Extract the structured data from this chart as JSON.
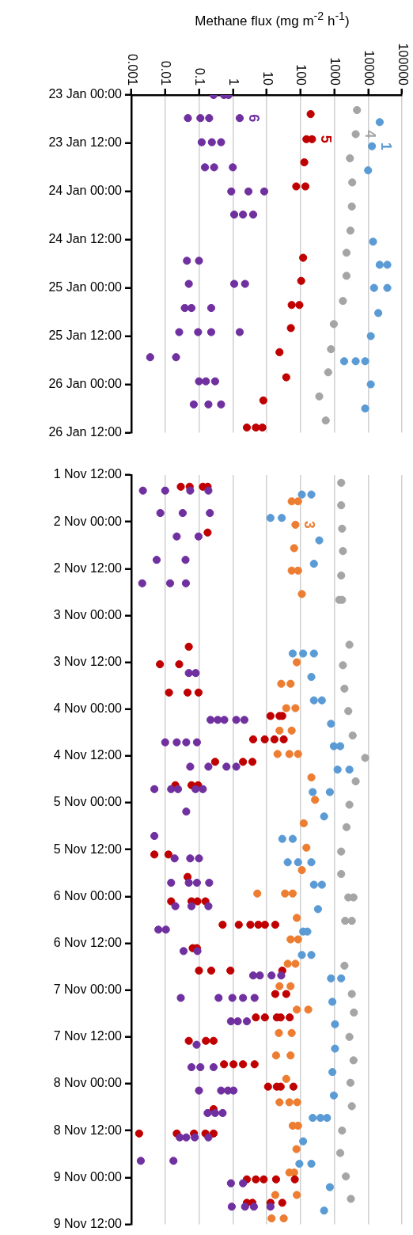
{
  "chart_data": [
    {
      "type": "scatter",
      "orientation": "horizontal",
      "xlabel": "Methane flux (mg m$^{-2}$ h$^{-1}$)",
      "log": "x",
      "grid": "x",
      "marker": "circle",
      "xlim": [
        0.001,
        100000
      ],
      "xticks": [
        0.001,
        0.01,
        0.1,
        1,
        10,
        100,
        1000,
        10000,
        100000
      ],
      "ylim": [
        "--01-26T12:00",
        "--01-23T00:00"
      ],
      "yticks": [
        {
          "value": "--01-23T00:00",
          "label": "23 Jan 00:00"
        },
        {
          "value": "--01-23T12:00",
          "label": "23 Jan 12:00"
        },
        {
          "value": "--01-24T00:00",
          "label": "24 Jan 00:00"
        },
        {
          "value": "--01-24T12:00",
          "label": "24 Jan 12:00"
        },
        {
          "value": "--01-25T00:00",
          "label": "25 Jan 00:00"
        },
        {
          "value": "--01-25T12:00",
          "label": "25 Jan 12:00"
        },
        {
          "value": "--01-26T00:00",
          "label": "26 Jan 00:00"
        },
        {
          "value": "--01-26T12:00",
          "label": "26 Jan 12:00"
        }
      ],
      "series": [
        {
          "name": "1",
          "color": "#5b9bd5",
          "x": [
            "--01-23T06:45",
            "--01-23T12:45",
            "--01-23T18:45",
            "--01-24T12:30",
            "--01-24T18:15",
            "--01-24T18:15",
            "--01-25T00:00",
            "--01-25T00:00",
            "--01-25T06:15",
            "--01-25T12:00",
            "--01-25T18:15",
            "--01-25T18:15",
            "--01-25T18:15",
            "--01-26T00:00",
            "--01-26T06:00"
          ],
          "values": [
            22000,
            13000,
            10000,
            14000,
            22000,
            37000,
            15000,
            37000,
            20000,
            12000,
            1960,
            4300,
            8200,
            12000,
            8200
          ]
        },
        {
          "name": "4",
          "color": "#a5a5a5",
          "x": [
            "--01-23T03:45",
            "--01-23T09:45",
            "--01-23T15:45",
            "--01-23T21:45",
            "--01-24T03:45",
            "--01-24T09:45",
            "--01-24T15:15",
            "--01-24T21:00",
            "--01-25T03:15",
            "--01-25T09:00",
            "--01-25T15:15",
            "--01-25T21:00",
            "--01-26T03:00",
            "--01-26T09:00"
          ],
          "values": [
            4700,
            4300,
            2900,
            3400,
            3300,
            3000,
            2300,
            2300,
            1800,
            970,
            800,
            660,
            360,
            560
          ]
        },
        {
          "name": "5",
          "color": "#c00000",
          "x": [
            "--01-23T04:45",
            "--01-23T11:00",
            "--01-23T11:00",
            "--01-23T16:45",
            "--01-23T22:45",
            "--01-23T22:45",
            "--01-24T16:30",
            "--01-24T22:15",
            "--01-25T04:15",
            "--01-25T04:15",
            "--01-25T10:00",
            "--01-25T16:00",
            "--01-25T22:15",
            "--01-26T04:00",
            "--01-26T10:45",
            "--01-26T10:45",
            "--01-26T10:45"
          ],
          "values": [
            200,
            150,
            220,
            130,
            75,
            140,
            120,
            105,
            55,
            93,
            52,
            24,
            38,
            8,
            2.6,
            4.8,
            7.5
          ]
        },
        {
          "name": "6",
          "color": "#7030a0",
          "x": [
            "--01-23T00:00",
            "--01-23T00:00",
            "--01-23T00:00",
            "--01-23T05:45",
            "--01-23T05:45",
            "--01-23T05:45",
            "--01-23T05:45",
            "--01-23T11:45",
            "--01-23T11:45",
            "--01-23T11:45",
            "--01-23T18:00",
            "--01-23T18:00",
            "--01-23T18:00",
            "--01-24T00:00",
            "--01-24T00:00",
            "--01-24T00:00",
            "--01-24T05:45",
            "--01-24T05:45",
            "--01-24T05:45",
            "--01-24T17:15",
            "--01-24T17:15",
            "--01-24T23:00",
            "--01-24T23:00",
            "--01-24T23:00",
            "--01-25T05:00",
            "--01-25T05:00",
            "--01-25T05:00",
            "--01-25T11:00",
            "--01-25T11:00",
            "--01-25T11:00",
            "--01-25T11:00",
            "--01-25T17:15",
            "--01-25T17:15",
            "--01-25T23:15",
            "--01-25T23:15",
            "--01-25T23:15",
            "--01-26T05:00",
            "--01-26T05:00",
            "--01-26T05:00"
          ],
          "values": [
            0.27,
            0.55,
            0.75,
            0.047,
            0.11,
            0.2,
            1.6,
            0.12,
            0.24,
            0.45,
            0.15,
            0.28,
            1,
            0.9,
            2.9,
            8.5,
            1.1,
            2,
            4,
            0.044,
            0.1,
            0.05,
            1.1,
            2.3,
            0.038,
            0.06,
            0.23,
            0.026,
            0.094,
            0.23,
            1.6,
            0.0036,
            0.021,
            0.1,
            0.16,
            0.3,
            0.07,
            0.19,
            0.45
          ]
        }
      ]
    },
    {
      "type": "scatter",
      "orientation": "horizontal",
      "log": "x",
      "grid": "x",
      "marker": "circle",
      "tick_labels": "y",
      "xlim": [
        0.001,
        100000
      ],
      "xticks": [
        0.001,
        0.01,
        0.1,
        1,
        10,
        100,
        1000,
        10000,
        100000
      ],
      "ylim": [
        "--11-09T12:00",
        "--11-01T12:00"
      ],
      "yticks": [
        {
          "value": "--11-01T12:00",
          "label": "1 Nov 12:00"
        },
        {
          "value": "--11-02T00:00",
          "label": "2 Nov 00:00"
        },
        {
          "value": "--11-02T12:00",
          "label": "2 Nov 12:00"
        },
        {
          "value": "--11-03T00:00",
          "label": "3 Nov 00:00"
        },
        {
          "value": "--11-03T12:00",
          "label": "3 Nov 12:00"
        },
        {
          "value": "--11-04T00:00",
          "label": "4 Nov 00:00"
        },
        {
          "value": "--11-04T12:00",
          "label": "4 Nov 12:00"
        },
        {
          "value": "--11-05T00:00",
          "label": "5 Nov 00:00"
        },
        {
          "value": "--11-05T12:00",
          "label": "5 Nov 12:00"
        },
        {
          "value": "--11-06T00:00",
          "label": "6 Nov 00:00"
        },
        {
          "value": "--11-06T12:00",
          "label": "6 Nov 12:00"
        },
        {
          "value": "--11-07T00:00",
          "label": "7 Nov 00:00"
        },
        {
          "value": "--11-07T12:00",
          "label": "7 Nov 12:00"
        },
        {
          "value": "--11-08T00:00",
          "label": "8 Nov 00:00"
        },
        {
          "value": "--11-08T12:00",
          "label": "8 Nov 12:00"
        },
        {
          "value": "--11-09T00:00",
          "label": "9 Nov 00:00"
        },
        {
          "value": "--11-09T12:00",
          "label": "9 Nov 12:00"
        }
      ],
      "series": [
        {
          "color": "#5b9bd5",
          "x": [
            "--11-01T17:00",
            "--11-01T17:00",
            "--11-01T23:00",
            "--11-01T23:00",
            "--11-02T04:45",
            "--11-02T10:45",
            "--11-03T09:45",
            "--11-03T09:45",
            "--11-03T09:45",
            "--11-03T15:45",
            "--11-03T21:45",
            "--11-03T21:45",
            "--11-04T03:45",
            "--11-04T09:30",
            "--11-04T09:30",
            "--11-04T15:30",
            "--11-04T15:30",
            "--11-04T21:15",
            "--11-04T21:15",
            "--11-05T03:30",
            "--11-05T09:15",
            "--11-05T09:15",
            "--11-05T15:15",
            "--11-05T15:15",
            "--11-05T15:15",
            "--11-05T21:00",
            "--11-05T21:00",
            "--11-06T03:15",
            "--11-06T09:00",
            "--11-06T09:00",
            "--11-06T15:00",
            "--11-06T15:00",
            "--11-06T21:00",
            "--11-06T21:00",
            "--11-07T03:00",
            "--11-07T08:45",
            "--11-07T15:00",
            "--11-07T21:00",
            "--11-08T03:00",
            "--11-08T08:45",
            "--11-08T08:45",
            "--11-08T08:45",
            "--11-08T14:45",
            "--11-08T20:30",
            "--11-08T20:30",
            "--11-09T02:30",
            "--11-09T08:30"
          ],
          "values": [
            110,
            210,
            13,
            28,
            360,
            250,
            59,
            120,
            250,
            210,
            250,
            430,
            800,
            970,
            1500,
            1250,
            2800,
            230,
            740,
            500,
            29,
            59,
            42,
            85,
            210,
            250,
            430,
            330,
            120,
            160,
            110,
            210,
            800,
            1600,
            880,
            1050,
            1050,
            880,
            970,
            230,
            390,
            610,
            120,
            93,
            210,
            740,
            500
          ]
        },
        {
          "name": "3",
          "color": "#ed7d31",
          "x": [
            "--11-01T18:45",
            "--11-01T18:45",
            "--11-02T00:45",
            "--11-02T06:45",
            "--11-02T12:30",
            "--11-02T12:30",
            "--11-02T18:30",
            "--11-03T12:00",
            "--11-03T17:30",
            "--11-03T17:30",
            "--11-03T23:45",
            "--11-03T23:45",
            "--11-04T05:30",
            "--11-04T05:30",
            "--11-04T11:30",
            "--11-04T11:30",
            "--11-04T11:30",
            "--11-04T17:30",
            "--11-04T23:15",
            "--11-05T05:15",
            "--11-05T11:30",
            "--11-05T17:15",
            "--11-05T23:15",
            "--11-05T23:15",
            "--11-05T23:15",
            "--11-06T05:30",
            "--11-06T11:00",
            "--11-06T11:00",
            "--11-06T17:15",
            "--11-06T17:15",
            "--11-06T23:00",
            "--11-06T23:00",
            "--11-07T05:00",
            "--11-07T05:00",
            "--11-07T11:00",
            "--11-07T11:00",
            "--11-07T16:45",
            "--11-07T16:45",
            "--11-07T22:45",
            "--11-08T04:45",
            "--11-08T04:45",
            "--11-08T04:45",
            "--11-08T10:45",
            "--11-08T10:45",
            "--11-08T16:45",
            "--11-08T22:45",
            "--11-08T22:45",
            "--11-09T04:30",
            "--11-09T04:30",
            "--11-09T10:30",
            "--11-09T10:30"
          ],
          "values": [
            55,
            85,
            71,
            65,
            55,
            85,
            110,
            78,
            27,
            51,
            38,
            71,
            24,
            55,
            21,
            47,
            85,
            210,
            270,
            125,
            150,
            110,
            5.3,
            35,
            59,
            78,
            51,
            85,
            42,
            71,
            24,
            51,
            78,
            170,
            23,
            55,
            19,
            51,
            38,
            24,
            47,
            80,
            59,
            85,
            76,
            47,
            65,
            18,
            78,
            14,
            32
          ]
        },
        {
          "color": "#a5a5a5",
          "x": [
            "--11-01T14:00",
            "--11-01T19:45",
            "--11-02T01:45",
            "--11-02T07:30",
            "--11-02T13:45",
            "--11-02T20:00",
            "--11-02T20:00",
            "--11-03T07:30",
            "--11-03T12:45",
            "--11-03T18:45",
            "--11-04T00:30",
            "--11-04T06:45",
            "--11-04T12:30",
            "--11-04T18:30",
            "--11-05T00:30",
            "--11-05T06:15",
            "--11-05T12:30",
            "--11-05T18:15",
            "--11-06T00:15",
            "--11-06T00:15",
            "--11-06T06:15",
            "--11-06T06:15",
            "--11-06T17:45",
            "--11-07T01:00",
            "--11-07T05:45",
            "--11-07T12:00",
            "--11-07T18:00",
            "--11-07T23:45",
            "--11-08T05:45",
            "--11-08T12:00",
            "--11-08T17:45",
            "--11-08T23:45",
            "--11-09T05:30"
          ],
          "values": [
            1600,
            1600,
            1700,
            1800,
            1600,
            1400,
            1700,
            2800,
            1800,
            2000,
            2600,
            3500,
            8200,
            4300,
            2800,
            2300,
            1600,
            1600,
            2600,
            3700,
            2100,
            3300,
            2000,
            3300,
            3800,
            2800,
            3700,
            3000,
            3300,
            1700,
            1500,
            2200,
            3100
          ]
        },
        {
          "color": "#c00000",
          "x": [
            "--11-01T15:00",
            "--11-01T15:00",
            "--11-01T15:00",
            "--11-01T15:00",
            "--11-02T02:45",
            "--11-03T08:00",
            "--11-03T12:30",
            "--11-03T12:30",
            "--11-03T19:45",
            "--11-03T19:45",
            "--11-03T19:45",
            "--11-04T01:45",
            "--11-04T01:45",
            "--11-04T01:45",
            "--11-04T07:45",
            "--11-04T07:45",
            "--11-04T07:45",
            "--11-04T07:45",
            "--11-04T13:30",
            "--11-04T13:30",
            "--11-04T13:30",
            "--11-04T19:30",
            "--11-04T19:30",
            "--11-04T19:30",
            "--11-05T13:15",
            "--11-05T13:15",
            "--11-05T19:00",
            "--11-06T01:15",
            "--11-06T01:15",
            "--11-06T01:15",
            "--11-06T01:15",
            "--11-06T07:15",
            "--11-06T07:15",
            "--11-06T07:15",
            "--11-06T07:15",
            "--11-06T07:15",
            "--11-06T07:15",
            "--11-06T13:15",
            "--11-06T13:15",
            "--11-06T19:00",
            "--11-06T19:00",
            "--11-06T19:00",
            "--11-06T19:00",
            "--11-07T01:00",
            "--11-07T01:00",
            "--11-07T07:00",
            "--11-07T07:00",
            "--11-07T07:00",
            "--11-07T07:00",
            "--11-07T07:00",
            "--11-07T13:00",
            "--11-07T13:00",
            "--11-07T13:00",
            "--11-07T19:00",
            "--11-07T19:00",
            "--11-07T19:00",
            "--11-07T19:00",
            "--11-08T00:45",
            "--11-08T00:45",
            "--11-08T00:45",
            "--11-08T00:45",
            "--11-08T06:30",
            "--11-08T12:45",
            "--11-08T12:45",
            "--11-08T12:45",
            "--11-08T12:45",
            "--11-08T12:45",
            "--11-09T00:30",
            "--11-09T00:30",
            "--11-09T00:30",
            "--11-09T00:30",
            "--11-09T00:30",
            "--11-09T06:30",
            "--11-09T06:30",
            "--11-09T06:30",
            "--11-09T06:30"
          ],
          "values": [
            0.029,
            0.053,
            0.13,
            0.18,
            0.18,
            0.05,
            0.007,
            0.026,
            0.013,
            0.046,
            0.097,
            13,
            24,
            29,
            4,
            8.8,
            17,
            32,
            0.3,
            2,
            3.8,
            0.02,
            0.06,
            0.094,
            0.0048,
            0.0125,
            0.046,
            0.015,
            0.06,
            0.09,
            0.155,
            0.5,
            1.5,
            3.3,
            5.7,
            8.9,
            18,
            0.065,
            0.087,
            0.1,
            0.23,
            0.85,
            29,
            18,
            38,
            4.8,
            8.9,
            20,
            26,
            48,
            0.05,
            0.16,
            0.27,
            0.55,
            1.05,
            2,
            4.4,
            11,
            20,
            26,
            62,
            0.27,
            0.0017,
            0.022,
            0.071,
            0.155,
            0.27,
            2.6,
            4.8,
            8.2,
            19,
            68,
            2.6,
            3.8,
            13,
            29
          ]
        },
        {
          "color": "#7030a0",
          "x": [
            "--11-01T16:00",
            "--11-01T16:00",
            "--11-01T16:00",
            "--11-01T16:00",
            "--11-01T21:45",
            "--11-01T21:45",
            "--11-01T21:45",
            "--11-02T03:45",
            "--11-02T03:45",
            "--11-02T09:45",
            "--11-02T09:45",
            "--11-02T15:45",
            "--11-02T15:45",
            "--11-02T15:45",
            "--11-03T14:45",
            "--11-03T14:45",
            "--11-04T02:45",
            "--11-04T02:45",
            "--11-04T02:45",
            "--11-04T02:45",
            "--11-04T02:45",
            "--11-04T08:30",
            "--11-04T08:30",
            "--11-04T08:30",
            "--11-04T08:30",
            "--11-04T14:45",
            "--11-04T14:45",
            "--11-04T14:45",
            "--11-04T14:45",
            "--11-04T20:30",
            "--11-04T20:30",
            "--11-04T20:30",
            "--11-04T20:30",
            "--11-04T20:30",
            "--11-05T02:15",
            "--11-05T08:30",
            "--11-05T14:15",
            "--11-05T14:15",
            "--11-05T14:15",
            "--11-05T20:30",
            "--11-05T20:30",
            "--11-05T20:30",
            "--11-05T20:30",
            "--11-06T02:30",
            "--11-06T02:30",
            "--11-06T02:30",
            "--11-06T08:30",
            "--11-06T08:30",
            "--11-06T14:00",
            "--11-06T14:00",
            "--11-06T20:15",
            "--11-06T20:15",
            "--11-06T20:15",
            "--11-06T20:15",
            "--11-07T02:00",
            "--11-07T02:00",
            "--11-07T02:00",
            "--11-07T02:00",
            "--11-07T02:00",
            "--11-07T08:00",
            "--11-07T08:00",
            "--11-07T08:00",
            "--11-07T14:00",
            "--11-07T19:45",
            "--11-07T19:45",
            "--11-07T19:45",
            "--11-08T01:45",
            "--11-08T01:45",
            "--11-08T01:45",
            "--11-08T01:45",
            "--11-08T07:30",
            "--11-08T07:30",
            "--11-08T07:30",
            "--11-08T13:45",
            "--11-08T13:45",
            "--11-08T13:45",
            "--11-08T13:45",
            "--11-08T19:45",
            "--11-08T19:45",
            "--11-09T01:30",
            "--11-09T01:30",
            "--11-09T07:30",
            "--11-09T07:30",
            "--11-09T07:30",
            "--11-09T07:30"
          ],
          "values": [
            0.0022,
            0.01,
            0.055,
            0.19,
            0.0072,
            0.033,
            0.21,
            0.022,
            0.097,
            0.0056,
            0.04,
            0.0021,
            0.014,
            0.041,
            0.05,
            0.08,
            0.22,
            0.36,
            0.56,
            1.26,
            2.2,
            0.01,
            0.022,
            0.042,
            0.087,
            0.055,
            0.19,
            0.65,
            1.26,
            0.0048,
            0.015,
            0.024,
            0.079,
            0.13,
            0.042,
            0.0048,
            0.019,
            0.055,
            0.1,
            0.015,
            0.05,
            0.087,
            0.2,
            0.02,
            0.06,
            0.19,
            0.0063,
            0.0105,
            0.035,
            0.09,
            4,
            6.3,
            14,
            27,
            0.029,
            0.38,
            0.97,
            2,
            4.4,
            0.88,
            1.4,
            2.6,
            0.085,
            0.06,
            0.11,
            0.27,
            0.1,
            0.45,
            0.72,
            1.05,
            0.18,
            0.3,
            0.5,
            0.027,
            0.042,
            0.075,
            0.19,
            0.0019,
            0.0176,
            0.88,
            2,
            0.93,
            2.3,
            4.2,
            13
          ]
        }
      ]
    }
  ]
}
